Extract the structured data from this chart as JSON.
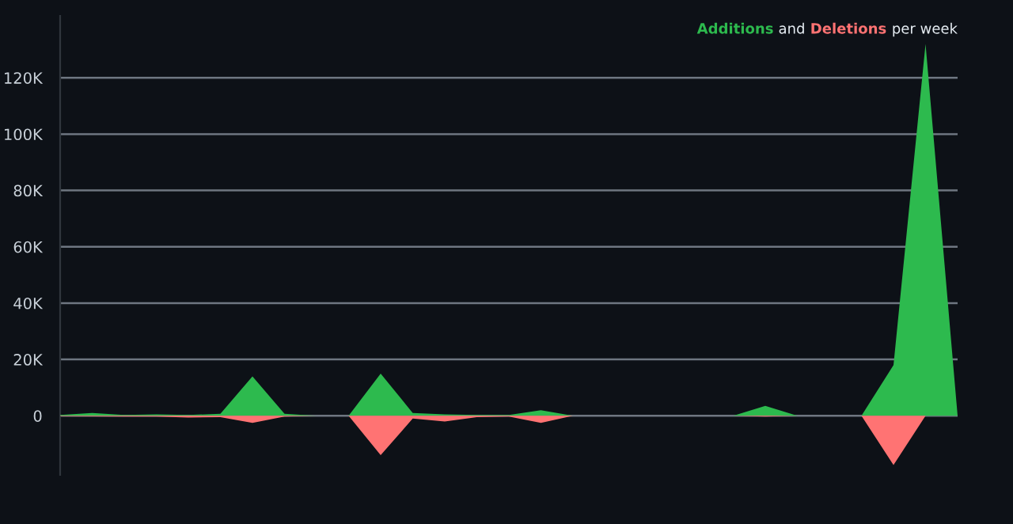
{
  "chart_data": {
    "type": "area",
    "annotations": [
      "and",
      "per week"
    ],
    "categories": [
      null,
      null,
      null,
      null,
      null,
      null,
      null,
      null,
      null,
      null,
      null,
      null,
      null,
      null,
      null,
      null,
      null,
      null,
      null,
      null,
      null,
      null,
      null,
      null,
      null,
      null,
      null,
      null,
      null
    ],
    "series": [
      {
        "name": "Additions",
        "color": "#2dba4e",
        "values": [
          300,
          1000,
          300,
          500,
          300,
          700,
          14000,
          700,
          0,
          0,
          15000,
          1000,
          500,
          300,
          300,
          2000,
          0,
          0,
          0,
          0,
          0,
          0,
          3500,
          0,
          0,
          0,
          18000,
          132000,
          0
        ]
      },
      {
        "name": "Deletions",
        "color": "#ff7373",
        "values": [
          -100,
          -200,
          -300,
          -300,
          -600,
          -500,
          -2500,
          -300,
          0,
          0,
          -14000,
          -1000,
          -2000,
          -500,
          -300,
          -2500,
          0,
          0,
          0,
          0,
          0,
          0,
          -300,
          0,
          0,
          0,
          -17500,
          0,
          0
        ]
      }
    ],
    "ylim": [
      -21000,
      142000
    ],
    "yticks": [
      0,
      {
        "value": 20000,
        "label": "20K"
      },
      {
        "value": 40000,
        "label": "40K"
      },
      {
        "value": 60000,
        "label": "60K"
      },
      {
        "value": 80000,
        "label": "80K"
      },
      {
        "value": 100000,
        "label": "100K"
      },
      {
        "value": 120000,
        "label": "120K"
      }
    ],
    "grid": "y"
  }
}
